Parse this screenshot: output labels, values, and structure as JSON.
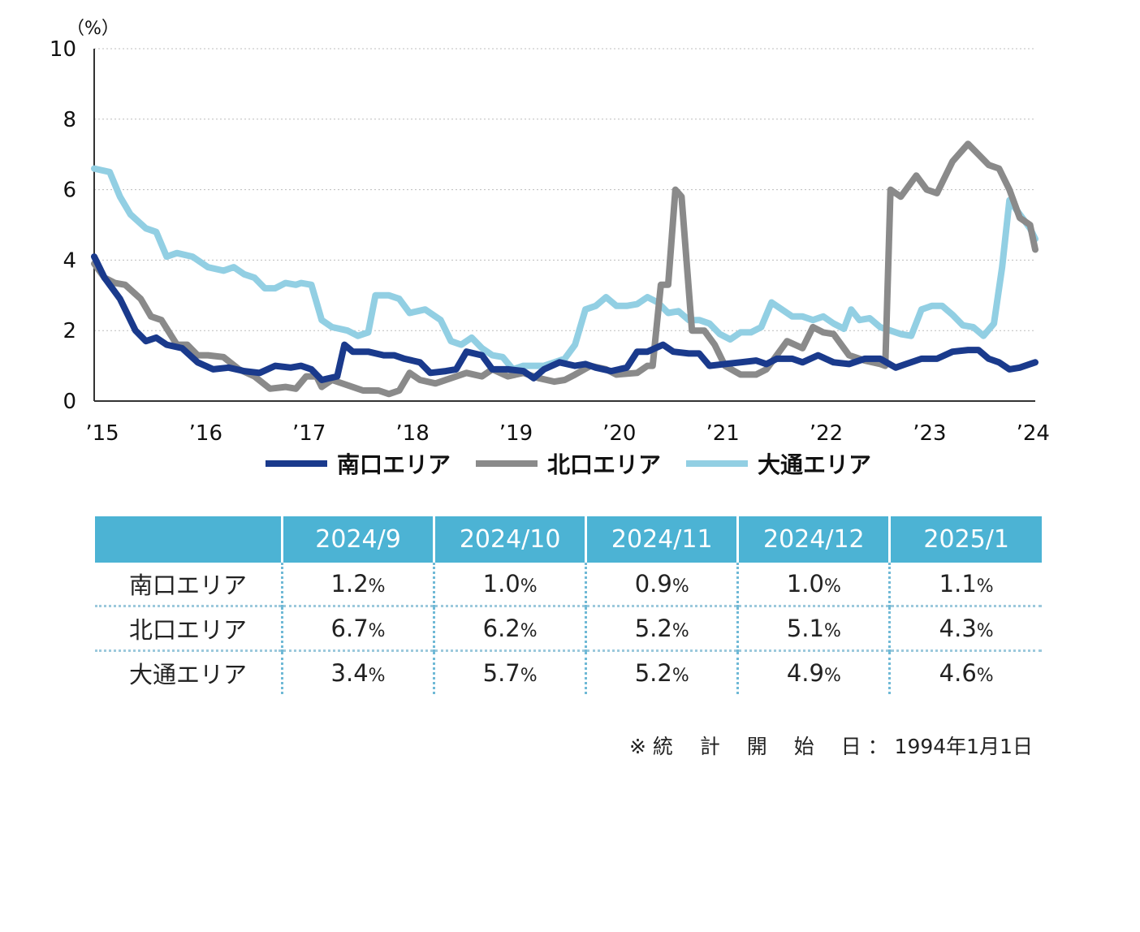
{
  "chart_data": {
    "type": "line",
    "unit_label": "（%）",
    "ylim": [
      0,
      10
    ],
    "y_ticks": [
      "0",
      "2",
      "4",
      "6",
      "8",
      "10"
    ],
    "xlim": [
      2015.0,
      2024.1
    ],
    "x_ticks": [
      {
        "v": 2015,
        "label": "'15"
      },
      {
        "v": 2016,
        "label": "'16"
      },
      {
        "v": 2017,
        "label": "'17"
      },
      {
        "v": 2018,
        "label": "'18"
      },
      {
        "v": 2019,
        "label": "'19"
      },
      {
        "v": 2020,
        "label": "'20"
      },
      {
        "v": 2021,
        "label": "'21"
      },
      {
        "v": 2022,
        "label": "'22"
      },
      {
        "v": 2023,
        "label": "'23"
      },
      {
        "v": 2024,
        "label": "'24"
      }
    ],
    "grid": true,
    "legend_position": "bottom",
    "series": [
      {
        "name": "南口エリア",
        "color": "#1a3a8c",
        "points": [
          [
            2015.0,
            4.1
          ],
          [
            2015.1,
            3.5
          ],
          [
            2015.25,
            2.9
          ],
          [
            2015.4,
            2.0
          ],
          [
            2015.5,
            1.7
          ],
          [
            2015.6,
            1.8
          ],
          [
            2015.7,
            1.6
          ],
          [
            2015.85,
            1.5
          ],
          [
            2016.0,
            1.1
          ],
          [
            2016.15,
            0.9
          ],
          [
            2016.3,
            0.95
          ],
          [
            2016.45,
            0.85
          ],
          [
            2016.6,
            0.8
          ],
          [
            2016.75,
            1.0
          ],
          [
            2016.9,
            0.95
          ],
          [
            2017.0,
            1.0
          ],
          [
            2017.1,
            0.9
          ],
          [
            2017.2,
            0.6
          ],
          [
            2017.35,
            0.7
          ],
          [
            2017.42,
            1.6
          ],
          [
            2017.5,
            1.4
          ],
          [
            2017.65,
            1.4
          ],
          [
            2017.8,
            1.3
          ],
          [
            2017.9,
            1.3
          ],
          [
            2018.0,
            1.2
          ],
          [
            2018.15,
            1.1
          ],
          [
            2018.25,
            0.8
          ],
          [
            2018.4,
            0.85
          ],
          [
            2018.5,
            0.9
          ],
          [
            2018.6,
            1.4
          ],
          [
            2018.75,
            1.3
          ],
          [
            2018.85,
            0.9
          ],
          [
            2019.0,
            0.9
          ],
          [
            2019.15,
            0.85
          ],
          [
            2019.25,
            0.65
          ],
          [
            2019.35,
            0.9
          ],
          [
            2019.5,
            1.1
          ],
          [
            2019.65,
            1.0
          ],
          [
            2019.75,
            1.05
          ],
          [
            2019.85,
            0.95
          ],
          [
            2020.0,
            0.85
          ],
          [
            2020.15,
            0.95
          ],
          [
            2020.25,
            1.4
          ],
          [
            2020.35,
            1.4
          ],
          [
            2020.5,
            1.6
          ],
          [
            2020.6,
            1.4
          ],
          [
            2020.75,
            1.35
          ],
          [
            2020.85,
            1.35
          ],
          [
            2020.95,
            1.0
          ],
          [
            2021.1,
            1.05
          ],
          [
            2021.25,
            1.1
          ],
          [
            2021.4,
            1.15
          ],
          [
            2021.5,
            1.05
          ],
          [
            2021.6,
            1.2
          ],
          [
            2021.75,
            1.2
          ],
          [
            2021.85,
            1.1
          ],
          [
            2022.0,
            1.3
          ],
          [
            2022.15,
            1.1
          ],
          [
            2022.3,
            1.05
          ],
          [
            2022.45,
            1.2
          ],
          [
            2022.6,
            1.2
          ],
          [
            2022.75,
            0.95
          ],
          [
            2022.85,
            1.05
          ],
          [
            2023.0,
            1.2
          ],
          [
            2023.15,
            1.2
          ],
          [
            2023.3,
            1.4
          ],
          [
            2023.45,
            1.45
          ],
          [
            2023.55,
            1.45
          ],
          [
            2023.65,
            1.2
          ],
          [
            2023.75,
            1.1
          ],
          [
            2023.85,
            0.9
          ],
          [
            2023.95,
            0.95
          ],
          [
            2024.1,
            1.1
          ]
        ]
      },
      {
        "name": "北口エリア",
        "color": "#8a8a8a",
        "points": [
          [
            2015.0,
            3.9
          ],
          [
            2015.1,
            3.5
          ],
          [
            2015.2,
            3.35
          ],
          [
            2015.3,
            3.3
          ],
          [
            2015.45,
            2.9
          ],
          [
            2015.55,
            2.4
          ],
          [
            2015.65,
            2.3
          ],
          [
            2015.8,
            1.6
          ],
          [
            2015.9,
            1.6
          ],
          [
            2016.0,
            1.3
          ],
          [
            2016.1,
            1.3
          ],
          [
            2016.25,
            1.25
          ],
          [
            2016.4,
            0.9
          ],
          [
            2016.55,
            0.7
          ],
          [
            2016.7,
            0.35
          ],
          [
            2016.85,
            0.4
          ],
          [
            2016.95,
            0.35
          ],
          [
            2017.05,
            0.7
          ],
          [
            2017.15,
            0.7
          ],
          [
            2017.2,
            0.4
          ],
          [
            2017.3,
            0.6
          ],
          [
            2017.45,
            0.45
          ],
          [
            2017.6,
            0.3
          ],
          [
            2017.75,
            0.3
          ],
          [
            2017.85,
            0.2
          ],
          [
            2017.95,
            0.3
          ],
          [
            2018.05,
            0.8
          ],
          [
            2018.15,
            0.6
          ],
          [
            2018.3,
            0.5
          ],
          [
            2018.45,
            0.65
          ],
          [
            2018.6,
            0.8
          ],
          [
            2018.75,
            0.7
          ],
          [
            2018.85,
            0.9
          ],
          [
            2019.0,
            0.7
          ],
          [
            2019.15,
            0.8
          ],
          [
            2019.3,
            0.65
          ],
          [
            2019.45,
            0.55
          ],
          [
            2019.55,
            0.6
          ],
          [
            2019.65,
            0.75
          ],
          [
            2019.8,
            1.0
          ],
          [
            2019.95,
            0.9
          ],
          [
            2020.05,
            0.75
          ],
          [
            2020.25,
            0.8
          ],
          [
            2020.35,
            1.0
          ],
          [
            2020.4,
            1.0
          ],
          [
            2020.48,
            3.3
          ],
          [
            2020.55,
            3.3
          ],
          [
            2020.62,
            6.0
          ],
          [
            2020.68,
            5.8
          ],
          [
            2020.78,
            2.0
          ],
          [
            2020.9,
            2.0
          ],
          [
            2021.0,
            1.6
          ],
          [
            2021.1,
            1.0
          ],
          [
            2021.25,
            0.75
          ],
          [
            2021.4,
            0.75
          ],
          [
            2021.5,
            0.9
          ],
          [
            2021.6,
            1.3
          ],
          [
            2021.7,
            1.7
          ],
          [
            2021.85,
            1.5
          ],
          [
            2021.95,
            2.1
          ],
          [
            2022.05,
            1.95
          ],
          [
            2022.15,
            1.9
          ],
          [
            2022.3,
            1.3
          ],
          [
            2022.45,
            1.15
          ],
          [
            2022.6,
            1.05
          ],
          [
            2022.65,
            1.0
          ],
          [
            2022.7,
            6.0
          ],
          [
            2022.8,
            5.8
          ],
          [
            2022.95,
            6.4
          ],
          [
            2023.05,
            6.0
          ],
          [
            2023.15,
            5.9
          ],
          [
            2023.3,
            6.8
          ],
          [
            2023.45,
            7.3
          ],
          [
            2023.55,
            7.0
          ],
          [
            2023.65,
            6.7
          ],
          [
            2023.75,
            6.6
          ],
          [
            2023.85,
            6.0
          ],
          [
            2023.95,
            5.2
          ],
          [
            2024.05,
            5.0
          ],
          [
            2024.1,
            4.3
          ]
        ]
      },
      {
        "name": "大通エリア",
        "color": "#92cfe3",
        "points": [
          [
            2015.0,
            6.6
          ],
          [
            2015.15,
            6.5
          ],
          [
            2015.25,
            5.8
          ],
          [
            2015.35,
            5.3
          ],
          [
            2015.5,
            4.9
          ],
          [
            2015.6,
            4.8
          ],
          [
            2015.7,
            4.1
          ],
          [
            2015.8,
            4.2
          ],
          [
            2015.95,
            4.1
          ],
          [
            2016.1,
            3.8
          ],
          [
            2016.25,
            3.7
          ],
          [
            2016.35,
            3.8
          ],
          [
            2016.45,
            3.6
          ],
          [
            2016.55,
            3.5
          ],
          [
            2016.65,
            3.2
          ],
          [
            2016.75,
            3.2
          ],
          [
            2016.85,
            3.35
          ],
          [
            2016.95,
            3.3
          ],
          [
            2017.0,
            3.35
          ],
          [
            2017.1,
            3.3
          ],
          [
            2017.2,
            2.3
          ],
          [
            2017.3,
            2.1
          ],
          [
            2017.45,
            2.0
          ],
          [
            2017.55,
            1.85
          ],
          [
            2017.65,
            1.95
          ],
          [
            2017.72,
            3.0
          ],
          [
            2017.85,
            3.0
          ],
          [
            2017.95,
            2.9
          ],
          [
            2018.05,
            2.5
          ],
          [
            2018.2,
            2.6
          ],
          [
            2018.35,
            2.3
          ],
          [
            2018.45,
            1.7
          ],
          [
            2018.55,
            1.6
          ],
          [
            2018.65,
            1.8
          ],
          [
            2018.75,
            1.5
          ],
          [
            2018.85,
            1.3
          ],
          [
            2018.95,
            1.25
          ],
          [
            2019.05,
            0.9
          ],
          [
            2019.15,
            1.0
          ],
          [
            2019.25,
            1.0
          ],
          [
            2019.35,
            1.0
          ],
          [
            2019.45,
            1.1
          ],
          [
            2019.55,
            1.2
          ],
          [
            2019.65,
            1.6
          ],
          [
            2019.75,
            2.6
          ],
          [
            2019.85,
            2.7
          ],
          [
            2019.95,
            2.95
          ],
          [
            2020.05,
            2.7
          ],
          [
            2020.15,
            2.7
          ],
          [
            2020.25,
            2.75
          ],
          [
            2020.35,
            2.95
          ],
          [
            2020.45,
            2.8
          ],
          [
            2020.55,
            2.5
          ],
          [
            2020.65,
            2.55
          ],
          [
            2020.75,
            2.3
          ],
          [
            2020.85,
            2.3
          ],
          [
            2020.95,
            2.2
          ],
          [
            2021.05,
            1.9
          ],
          [
            2021.15,
            1.75
          ],
          [
            2021.25,
            1.95
          ],
          [
            2021.35,
            1.95
          ],
          [
            2021.45,
            2.1
          ],
          [
            2021.55,
            2.8
          ],
          [
            2021.65,
            2.6
          ],
          [
            2021.75,
            2.4
          ],
          [
            2021.85,
            2.4
          ],
          [
            2021.95,
            2.3
          ],
          [
            2022.05,
            2.4
          ],
          [
            2022.15,
            2.2
          ],
          [
            2022.25,
            2.05
          ],
          [
            2022.32,
            2.6
          ],
          [
            2022.4,
            2.3
          ],
          [
            2022.5,
            2.35
          ],
          [
            2022.6,
            2.1
          ],
          [
            2022.7,
            2.0
          ],
          [
            2022.8,
            1.9
          ],
          [
            2022.9,
            1.85
          ],
          [
            2023.0,
            2.6
          ],
          [
            2023.1,
            2.7
          ],
          [
            2023.2,
            2.7
          ],
          [
            2023.3,
            2.45
          ],
          [
            2023.4,
            2.15
          ],
          [
            2023.5,
            2.1
          ],
          [
            2023.6,
            1.85
          ],
          [
            2023.7,
            2.2
          ],
          [
            2023.78,
            3.8
          ],
          [
            2023.85,
            5.7
          ],
          [
            2023.95,
            5.3
          ],
          [
            2024.05,
            4.9
          ],
          [
            2024.1,
            4.6
          ]
        ]
      }
    ]
  },
  "table": {
    "headers": [
      "",
      "2024/9",
      "2024/10",
      "2024/11",
      "2024/12",
      "2025/1"
    ],
    "rows": [
      {
        "label": "南口エリア",
        "values": [
          "1.2",
          "1.0",
          "0.9",
          "1.0",
          "1.1"
        ]
      },
      {
        "label": "北口エリア",
        "values": [
          "6.7",
          "6.2",
          "5.2",
          "5.1",
          "4.3"
        ]
      },
      {
        "label": "大通エリア",
        "values": [
          "3.4",
          "5.7",
          "5.2",
          "4.9",
          "4.6"
        ]
      }
    ],
    "unit": "%"
  },
  "note": "※ 統　 計　 開　 始　 日 ： 1994年1月1日"
}
